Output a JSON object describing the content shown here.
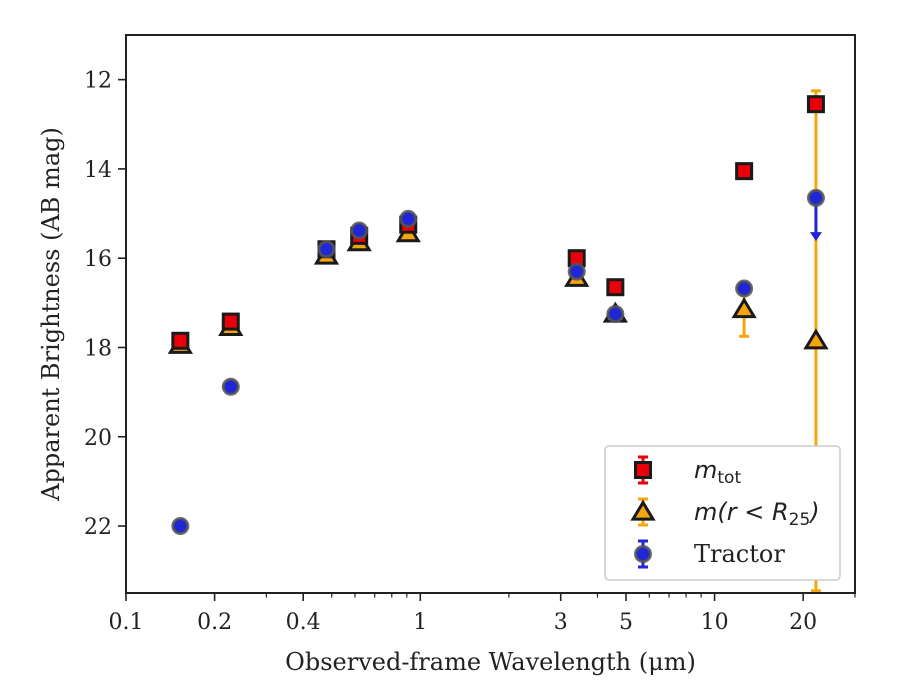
{
  "chart_data": {
    "type": "scatter",
    "xlabel": "Observed-frame Wavelength (μm)",
    "ylabel": "Apparent Brightness (AB mag)",
    "xscale": "log",
    "xlim": [
      0.1,
      30
    ],
    "ylim": [
      23.5,
      11.0
    ],
    "y_inverted": true,
    "x_ticks": [
      {
        "value": 0.1,
        "label": "0.1"
      },
      {
        "value": 0.2,
        "label": "0.2"
      },
      {
        "value": 0.4,
        "label": "0.4"
      },
      {
        "value": 1,
        "label": "1"
      },
      {
        "value": 3,
        "label": "3"
      },
      {
        "value": 5,
        "label": "5"
      },
      {
        "value": 10,
        "label": "10"
      },
      {
        "value": 20,
        "label": "20"
      }
    ],
    "y_ticks": [
      {
        "value": 12,
        "label": "12"
      },
      {
        "value": 14,
        "label": "14"
      },
      {
        "value": 16,
        "label": "16"
      },
      {
        "value": 18,
        "label": "18"
      },
      {
        "value": 20,
        "label": "20"
      },
      {
        "value": 22,
        "label": "22"
      }
    ],
    "grid": false,
    "legend_position": "lower-right",
    "series": [
      {
        "key": "m_tot",
        "legend_main": "m",
        "legend_sub": "tot",
        "marker": "square",
        "fill": "#e8000b",
        "edge": "#1a1a1a",
        "errcolor": "#e8000b",
        "points": [
          {
            "x": 0.153,
            "y": 17.85,
            "err": 0.15
          },
          {
            "x": 0.227,
            "y": 17.42,
            "err": 0.1
          },
          {
            "x": 0.48,
            "y": 15.8,
            "err": 0.05
          },
          {
            "x": 0.62,
            "y": 15.5,
            "err": 0.05
          },
          {
            "x": 0.91,
            "y": 15.25,
            "err": 0.05
          },
          {
            "x": 3.4,
            "y": 16.0,
            "err": 0.05
          },
          {
            "x": 4.6,
            "y": 16.65,
            "err": 0.05
          },
          {
            "x": 12.6,
            "y": 14.05,
            "err": 0.05
          },
          {
            "x": 22.1,
            "y": 12.55,
            "err": 0.1
          }
        ]
      },
      {
        "key": "m_r_lt_R25",
        "legend_main": "m(r < R",
        "legend_sub": "25",
        "legend_tail": ")",
        "marker": "triangle",
        "fill": "#f5a60e",
        "edge": "#1a1a1a",
        "errcolor": "#f5a60e",
        "points": [
          {
            "x": 0.153,
            "y": 17.95,
            "err": 0.1
          },
          {
            "x": 0.227,
            "y": 17.55,
            "err": 0.1
          },
          {
            "x": 0.48,
            "y": 15.95,
            "err": 0.05
          },
          {
            "x": 0.62,
            "y": 15.65,
            "err": 0.05
          },
          {
            "x": 0.91,
            "y": 15.45,
            "err": 0.05
          },
          {
            "x": 3.4,
            "y": 16.45,
            "err": 0.05
          },
          {
            "x": 4.6,
            "y": 17.25,
            "err": 0.1
          },
          {
            "x": 12.6,
            "y": 17.15,
            "err": 0.6
          },
          {
            "x": 22.1,
            "y": 17.85,
            "err": 5.6
          }
        ]
      },
      {
        "key": "tractor",
        "legend_main": "Tractor",
        "marker": "circle",
        "fill": "#1f26d6",
        "edge": "#555555",
        "errcolor": "#1f26d6",
        "points": [
          {
            "x": 0.153,
            "y": 22.0,
            "err": 0.05
          },
          {
            "x": 0.227,
            "y": 18.88,
            "err": 0.05
          },
          {
            "x": 0.48,
            "y": 15.8,
            "err": 0.05
          },
          {
            "x": 0.62,
            "y": 15.38,
            "err": 0.05
          },
          {
            "x": 0.91,
            "y": 15.12,
            "err": 0.05
          },
          {
            "x": 3.4,
            "y": 16.3,
            "err": 0.05
          },
          {
            "x": 4.6,
            "y": 17.25,
            "err": 0.05
          },
          {
            "x": 12.6,
            "y": 16.68,
            "err": 0.05
          },
          {
            "x": 22.1,
            "y": 14.65,
            "err": 0.05,
            "upper_limit": true,
            "arrow_len": 0.9
          }
        ]
      }
    ]
  }
}
